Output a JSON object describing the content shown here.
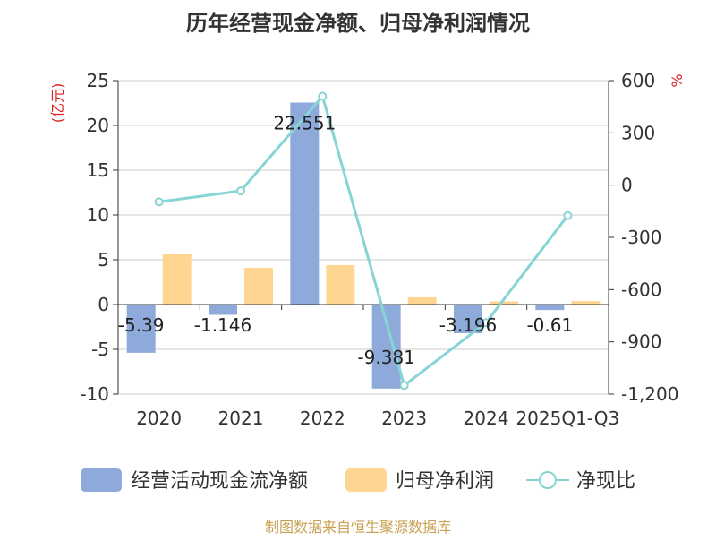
{
  "chart_data": {
    "type": "bar",
    "title": "历年经营现金净额、归母净利润情况",
    "categories": [
      "2020",
      "2021",
      "2022",
      "2023",
      "2024",
      "2025Q1-Q3"
    ],
    "series": [
      {
        "name": "经营活动现金流净额",
        "type": "bar",
        "axis": "left",
        "color": "#8eaadb",
        "values": [
          -5.39,
          -1.146,
          22.551,
          -9.381,
          -3.196,
          -0.61
        ],
        "labels": [
          "-5.39",
          "-1.146",
          "22.551",
          "-9.381",
          "-3.196",
          "-0.61"
        ]
      },
      {
        "name": "归母净利润",
        "type": "bar",
        "axis": "left",
        "color": "#ffd592",
        "values": [
          5.6,
          4.1,
          4.4,
          0.8,
          0.35,
          0.4
        ]
      },
      {
        "name": "净现比",
        "type": "line",
        "axis": "right",
        "color": "#86d4d4",
        "values": [
          -96,
          -33,
          510,
          -1150,
          -790,
          -175
        ]
      }
    ],
    "yaxis_left": {
      "label": "(亿元)",
      "min": -10,
      "max": 25,
      "ticks": [
        -10,
        -5,
        0,
        5,
        10,
        15,
        20,
        25
      ],
      "tick_labels": [
        "-10",
        "-5",
        "0",
        "5",
        "10",
        "15",
        "20",
        "25"
      ]
    },
    "yaxis_right": {
      "label": "%",
      "min": -1200,
      "max": 600,
      "ticks": [
        -1200,
        -900,
        -600,
        -300,
        0,
        300,
        600
      ],
      "tick_labels": [
        "-1,200",
        "-900",
        "-600",
        "-300",
        "0",
        "300",
        "600"
      ]
    },
    "grid": true,
    "legend": {
      "position": "bottom",
      "items": [
        {
          "label": "经营活动现金流净额",
          "symbol": "bar",
          "color": "#8eaadb"
        },
        {
          "label": "归母净利润",
          "symbol": "bar",
          "color": "#ffd592"
        },
        {
          "label": "净现比",
          "symbol": "line",
          "color": "#86d4d4"
        }
      ]
    },
    "source": "制图数据来自恒生聚源数据库"
  },
  "colors": {
    "title": "#333333",
    "axis_label": "#e02020",
    "source": "#c8a050",
    "grid": "#cccccc",
    "axis": "#333333"
  }
}
